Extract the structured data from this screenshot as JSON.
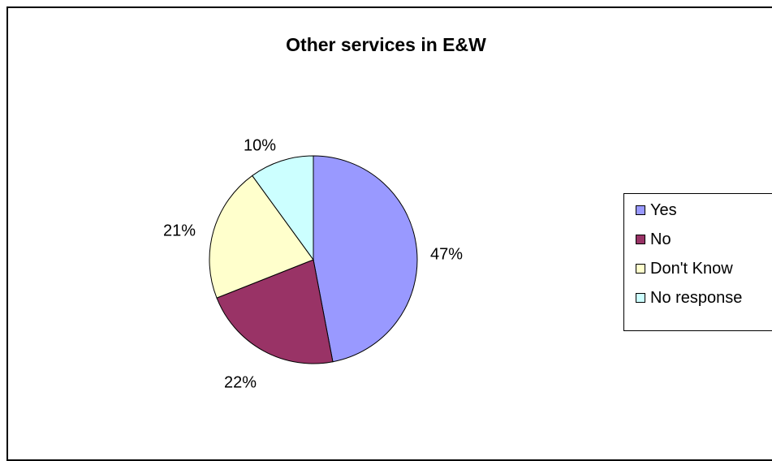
{
  "chart_data": {
    "type": "pie",
    "title": "Other services in E&W",
    "categories": [
      "Yes",
      "No",
      "Don't Know",
      "No response"
    ],
    "values": [
      47,
      22,
      21,
      10
    ],
    "data_labels": [
      "47%",
      "22%",
      "21%",
      "10%"
    ],
    "colors": [
      "#9999FF",
      "#993366",
      "#FFFFCC",
      "#CCFFFF"
    ],
    "legend_position": "right"
  }
}
